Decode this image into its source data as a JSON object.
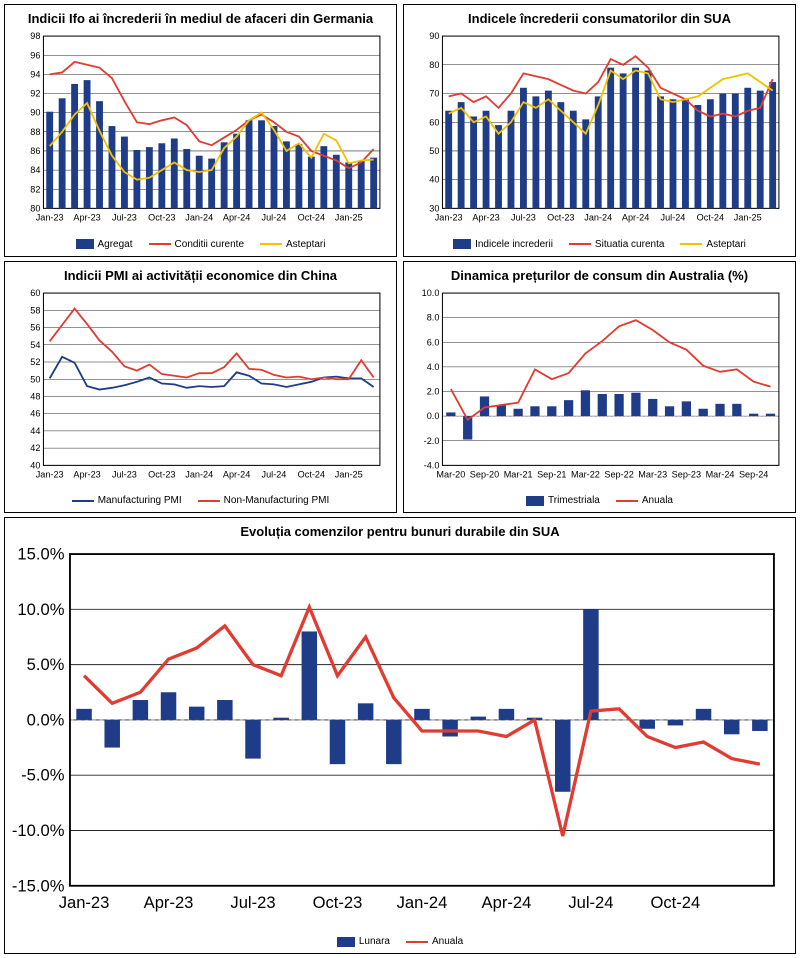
{
  "colors": {
    "bar_blue": "#1f3c88",
    "line_red": "#e03c31",
    "line_yellow": "#f2c200",
    "line_darkblue": "#1f3c88",
    "grid": "#000000",
    "dash": "#999999"
  },
  "charts": {
    "ifo": {
      "title": "Indicii Ifo ai încrederii în mediul de afaceri din Germania",
      "type": "bar+2lines",
      "ylim": [
        80,
        98
      ],
      "ytick_step": 2,
      "x_labels": [
        "Jan-23",
        "Apr-23",
        "Jul-23",
        "Oct-23",
        "Jan-24",
        "Apr-24",
        "Jul-24",
        "Oct-24",
        "Jan-25"
      ],
      "x_label_every": 3,
      "bars": {
        "label": "Agregat",
        "color": "#1f3c88",
        "values": [
          90.1,
          91.5,
          93.0,
          93.4,
          91.2,
          88.6,
          87.5,
          86.1,
          86.4,
          86.8,
          87.3,
          86.2,
          85.5,
          85.2,
          86.9,
          87.8,
          89.2,
          89.2,
          88.6,
          87.0,
          86.7,
          85.4,
          86.5,
          85.6,
          84.8,
          85.0,
          85.3
        ]
      },
      "lines": [
        {
          "label": "Conditii curente",
          "color": "#e03c31",
          "values": [
            94.0,
            94.2,
            95.3,
            95.0,
            94.7,
            93.6,
            91.2,
            89.0,
            88.8,
            89.2,
            89.5,
            88.7,
            87.0,
            86.6,
            87.4,
            88.2,
            89.2,
            89.8,
            89.0,
            88.0,
            87.5,
            86.0,
            85.5,
            85.0,
            84.2,
            84.8,
            86.2
          ]
        },
        {
          "label": "Asteptari",
          "color": "#f2c200",
          "values": [
            86.5,
            88.0,
            89.8,
            91.0,
            88.1,
            85.5,
            83.8,
            83.0,
            83.2,
            84.0,
            84.8,
            84.0,
            83.8,
            84.0,
            86.3,
            87.5,
            89.2,
            90.0,
            88.2,
            86.0,
            86.8,
            85.3,
            87.8,
            87.1,
            84.7,
            85.0,
            85.1
          ]
        }
      ]
    },
    "us_conf": {
      "title": "Indicele încrederii consumatorilor din SUA",
      "type": "bar+2lines",
      "ylim": [
        30,
        90
      ],
      "ytick_step": 10,
      "x_labels": [
        "Jan-23",
        "Apr-23",
        "Jul-23",
        "Oct-23",
        "Jan-24",
        "Apr-24",
        "Jul-24",
        "Oct-24",
        "Jan-25"
      ],
      "x_label_every": 3,
      "bars": {
        "label": "Indicele increderii",
        "color": "#1f3c88",
        "values": [
          64,
          67,
          62,
          64,
          59,
          64,
          72,
          69,
          71,
          67,
          64,
          61,
          69,
          79,
          77,
          79,
          78,
          69,
          68,
          68,
          66,
          68,
          70,
          70,
          72,
          71,
          74
        ]
      },
      "lines": [
        {
          "label": "Situatia curenta",
          "color": "#e03c31",
          "values": [
            69,
            70,
            67,
            69,
            65,
            70,
            77,
            76,
            75,
            73,
            71,
            70,
            74,
            82,
            80,
            83,
            79,
            72,
            70,
            68,
            64,
            62,
            63,
            62,
            64,
            65,
            75
          ]
        },
        {
          "label": "Asteptari",
          "color": "#f2c200",
          "values": [
            63,
            65,
            60,
            62,
            56,
            60,
            67,
            65,
            68,
            64,
            60,
            56,
            66,
            78,
            75,
            78,
            77,
            68,
            67,
            68,
            69,
            72,
            75,
            76,
            77,
            74,
            71
          ]
        }
      ]
    },
    "pmi": {
      "title": "Indicii PMI ai activității economice din China",
      "type": "2lines",
      "ylim": [
        40,
        60
      ],
      "ytick_step": 2,
      "x_labels": [
        "Jan-23",
        "Apr-23",
        "Jul-23",
        "Oct-23",
        "Jan-24",
        "Apr-24",
        "Jul-24",
        "Oct-24",
        "Jan-25"
      ],
      "x_label_every": 3,
      "lines": [
        {
          "label": "Manufacturing PMI",
          "color": "#1f3c88",
          "values": [
            50.1,
            52.6,
            51.9,
            49.2,
            48.8,
            49.0,
            49.3,
            49.7,
            50.2,
            49.5,
            49.4,
            49.0,
            49.2,
            49.1,
            49.2,
            50.8,
            50.4,
            49.5,
            49.4,
            49.1,
            49.4,
            49.7,
            50.2,
            50.3,
            50.1,
            50.1,
            49.1
          ]
        },
        {
          "label": "Non-Manufacturing PMI",
          "color": "#e03c31",
          "values": [
            54.4,
            56.3,
            58.2,
            56.4,
            54.5,
            53.2,
            51.5,
            51.0,
            51.7,
            50.6,
            50.4,
            50.2,
            50.7,
            50.7,
            51.4,
            53.0,
            51.2,
            51.1,
            50.5,
            50.2,
            50.3,
            50.0,
            50.2,
            50.0,
            50.0,
            52.2,
            50.2
          ]
        }
      ]
    },
    "aus_cpi": {
      "title": "Dinamica prețurilor de consum din Australia (%)",
      "type": "bar+line",
      "ylim": [
        -4,
        10
      ],
      "ytick_step": 2,
      "y_suffix": ".0",
      "x_labels": [
        "Mar-20",
        "Sep-20",
        "Mar-21",
        "Sep-21",
        "Mar-22",
        "Sep-22",
        "Mar-23",
        "Sep-23",
        "Mar-24",
        "Sep-24"
      ],
      "x_label_every": 2,
      "bars": {
        "label": "Trimestriala",
        "color": "#1f3c88",
        "values": [
          0.3,
          -1.9,
          1.6,
          0.9,
          0.6,
          0.8,
          0.8,
          1.3,
          2.1,
          1.8,
          1.8,
          1.9,
          1.4,
          0.8,
          1.2,
          0.6,
          1.0,
          1.0,
          0.2,
          0.2
        ]
      },
      "lines": [
        {
          "label": "Anuala",
          "color": "#e03c31",
          "values": [
            2.2,
            -0.3,
            0.7,
            0.9,
            1.1,
            3.8,
            3.0,
            3.5,
            5.1,
            6.1,
            7.3,
            7.8,
            7.0,
            6.0,
            5.4,
            4.1,
            3.6,
            3.8,
            2.8,
            2.4
          ]
        }
      ]
    },
    "durable": {
      "title": "Evoluția comenzilor pentru bunuri durabile din SUA",
      "type": "bar+line",
      "ylim": [
        -15,
        15
      ],
      "ytick_step": 5,
      "y_suffix": ".0%",
      "x_labels": [
        "Jan-23",
        "Apr-23",
        "Jul-23",
        "Oct-23",
        "Jan-24",
        "Apr-24",
        "Jul-24",
        "Oct-24"
      ],
      "x_label_every": 3,
      "bars": {
        "label": "Lunara",
        "color": "#1f3c88",
        "values": [
          1.0,
          -2.5,
          1.8,
          2.5,
          1.2,
          1.8,
          -3.5,
          0.2,
          8.0,
          -4.0,
          1.5,
          -4.0,
          1.0,
          -1.5,
          0.3,
          1.0,
          0.2,
          -6.5,
          10.0,
          0.0,
          -0.8,
          -0.5,
          1.0,
          -1.3,
          -1.0
        ]
      },
      "lines": [
        {
          "label": "Anuala",
          "color": "#e03c31",
          "values": [
            4.0,
            1.5,
            2.5,
            5.5,
            6.5,
            8.5,
            5.0,
            4.0,
            10.2,
            4.0,
            7.5,
            2.0,
            -1.0,
            -1.0,
            -1.0,
            -1.5,
            0.0,
            -10.5,
            0.8,
            1.0,
            -1.5,
            -2.5,
            -2.0,
            -3.5,
            -4.0
          ]
        }
      ]
    }
  }
}
